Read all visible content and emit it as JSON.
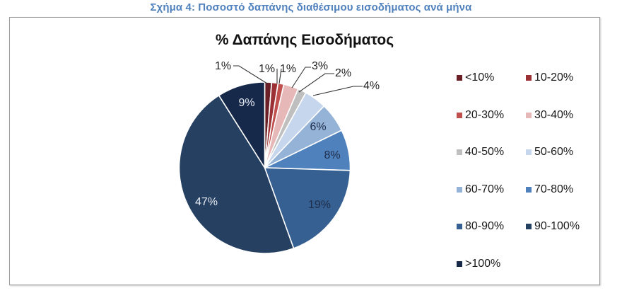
{
  "figure": {
    "caption": "Σχήμα 4: Ποσοστό δαπάνης διαθέσιμου εισοδήματος ανά μήνα",
    "caption_color": "#4f81bd"
  },
  "chart_data": {
    "type": "pie",
    "title": "% Δαπάνης Εισοδήματος",
    "start_angle_deg": 0,
    "direction": "clockwise",
    "legend_position": "right",
    "categories": [
      "<10%",
      "10-20%",
      "20-30%",
      "30-40%",
      "40-50%",
      "50-60%",
      "60-70%",
      "70-80%",
      "80-90%",
      "90-100%",
      ">100%"
    ],
    "values": [
      1,
      1,
      1,
      3,
      2,
      4,
      6,
      8,
      19,
      47,
      9
    ],
    "labels": [
      "1%",
      "1%",
      "1%",
      "3%",
      "2%",
      "4%",
      "6%",
      "8%",
      "19%",
      "47%",
      "9%"
    ],
    "colors": [
      "#6b2027",
      "#9b3035",
      "#c0504d",
      "#e6b9b8",
      "#bfbfbf",
      "#c6d6ec",
      "#95b3d7",
      "#4f81bd",
      "#366092",
      "#254061",
      "#16294a"
    ],
    "label_colors": [
      "#222222",
      "#222222",
      "#222222",
      "#222222",
      "#222222",
      "#222222",
      "#1f2d4a",
      "#1f2d4a",
      "#1f2d4a",
      "#e8ecf3",
      "#e8ecf3"
    ]
  },
  "legend": {
    "items": [
      {
        "label": "<10%",
        "color": "#6b2027"
      },
      {
        "label": "10-20%",
        "color": "#9b3035"
      },
      {
        "label": "20-30%",
        "color": "#c0504d"
      },
      {
        "label": "30-40%",
        "color": "#e6b9b8"
      },
      {
        "label": "40-50%",
        "color": "#bfbfbf"
      },
      {
        "label": "50-60%",
        "color": "#c6d6ec"
      },
      {
        "label": "60-70%",
        "color": "#95b3d7"
      },
      {
        "label": "70-80%",
        "color": "#4f81bd"
      },
      {
        "label": "80-90%",
        "color": "#366092"
      },
      {
        "label": "90-100%",
        "color": "#254061"
      },
      {
        "label": ">100%",
        "color": "#16294a"
      }
    ]
  }
}
